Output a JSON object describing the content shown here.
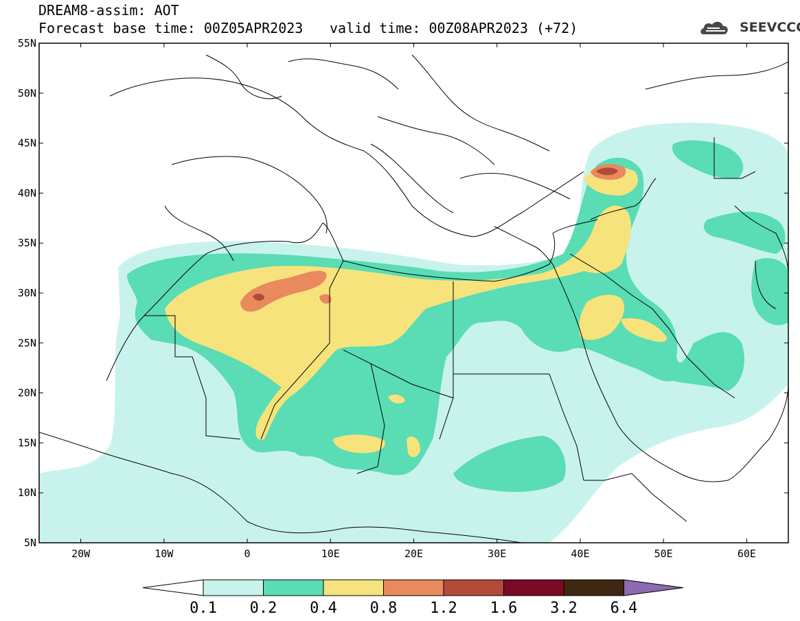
{
  "header": {
    "title": "DREAM8-assim: AOT",
    "base_time": "Forecast base time: 00Z05APR2023",
    "valid_time": "valid time: 00Z08APR2023 (+72)"
  },
  "logo": {
    "text": "SEEVCCC",
    "icon": "cloud-icon"
  },
  "map": {
    "lon_range": [
      -25,
      65
    ],
    "lat_range": [
      5,
      55
    ],
    "lat_ticks": [
      "55N",
      "50N",
      "45N",
      "40N",
      "35N",
      "30N",
      "25N",
      "20N",
      "15N",
      "10N",
      "5N"
    ],
    "lon_ticks": [
      "20W",
      "10W",
      "0",
      "10E",
      "20E",
      "30E",
      "40E",
      "50E",
      "60E"
    ]
  },
  "legend": {
    "labels": [
      "0.1",
      "0.2",
      "0.4",
      "0.8",
      "1.2",
      "1.6",
      "3.2",
      "6.4"
    ],
    "colors": [
      "#ffffff",
      "#c8f3ec",
      "#5adcb4",
      "#f6e37c",
      "#e88a5e",
      "#b24a3a",
      "#7a0a26",
      "#3e2812",
      "#8c6bb0"
    ]
  }
}
